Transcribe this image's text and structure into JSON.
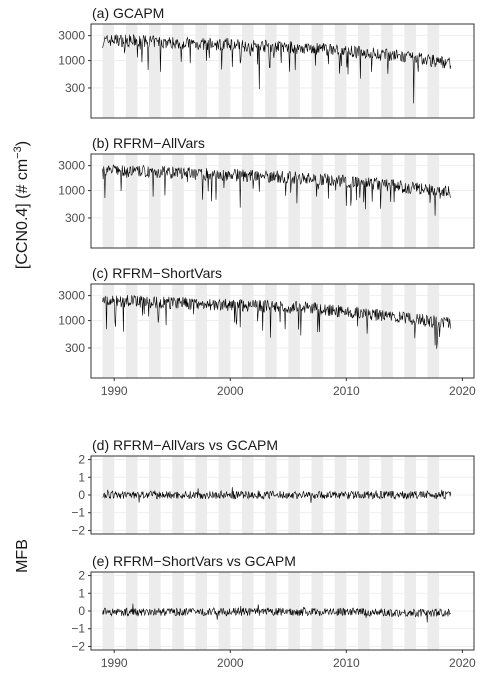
{
  "chart_data": [
    {
      "type": "line",
      "panel_title": "(a) GCAPM",
      "ylabel": "[CCN0.4] (# cm",
      "ylabel_exponent": "−3",
      "ylabel_close": ")",
      "y_scale": "log",
      "y_ticks": [
        300,
        1000,
        3000
      ],
      "y_tick_labels": [
        "300",
        "1000",
        "3000"
      ],
      "ylim": [
        80,
        5000
      ],
      "xlim": [
        1988.0,
        2021.0
      ],
      "grid": true,
      "background_bands": "alternate years shaded light grey (1989–2018)",
      "series": [
        {
          "x": [
            1989.0,
            1990.0,
            1991.0,
            1992.0,
            1993.0,
            1994.0,
            1995.0,
            1996.0,
            1997.0,
            1998.0,
            1999.0,
            2000.0,
            2001.0,
            2002.0,
            2003.0,
            2004.0,
            2005.0,
            2006.0,
            2007.0,
            2008.0,
            2009.0,
            2010.0,
            2011.0,
            2012.0,
            2013.0,
            2014.0,
            2015.0,
            2016.0,
            2017.0,
            2018.0,
            2019.0
          ],
          "y": [
            2300,
            2500,
            2400,
            2350,
            2300,
            2250,
            2200,
            2150,
            2100,
            2050,
            2000,
            2050,
            1950,
            1900,
            1900,
            1850,
            1800,
            1750,
            1700,
            1650,
            1600,
            1500,
            1450,
            1400,
            1300,
            1250,
            1150,
            1100,
            1050,
            950,
            900
          ]
        }
      ]
    },
    {
      "type": "line",
      "panel_title": "(b) RFRM−AllVars",
      "y_scale": "log",
      "y_ticks": [
        300,
        1000,
        3000
      ],
      "y_tick_labels": [
        "300",
        "1000",
        "3000"
      ],
      "ylim": [
        80,
        5000
      ],
      "xlim": [
        1988.0,
        2021.0
      ],
      "grid": true,
      "series": [
        {
          "x": [
            1989.0,
            1990.0,
            1991.0,
            1992.0,
            1993.0,
            1994.0,
            1995.0,
            1996.0,
            1997.0,
            1998.0,
            1999.0,
            2000.0,
            2001.0,
            2002.0,
            2003.0,
            2004.0,
            2005.0,
            2006.0,
            2007.0,
            2008.0,
            2009.0,
            2010.0,
            2011.0,
            2012.0,
            2013.0,
            2014.0,
            2015.0,
            2016.0,
            2017.0,
            2018.0,
            2019.0
          ],
          "y": [
            2400,
            2450,
            2350,
            2300,
            2300,
            2250,
            2200,
            2150,
            2100,
            2050,
            2000,
            2000,
            1950,
            1900,
            1900,
            1850,
            1800,
            1750,
            1700,
            1650,
            1600,
            1500,
            1450,
            1400,
            1300,
            1250,
            1150,
            1100,
            1050,
            1000,
            950
          ]
        }
      ]
    },
    {
      "type": "line",
      "panel_title": "(c) RFRM−ShortVars",
      "y_scale": "log",
      "y_ticks": [
        300,
        1000,
        3000
      ],
      "y_tick_labels": [
        "300",
        "1000",
        "3000"
      ],
      "ylim": [
        80,
        5000
      ],
      "xlim": [
        1988.0,
        2021.0
      ],
      "x_ticks": [
        1990,
        2000,
        2010,
        2020
      ],
      "x_tick_labels": [
        "1990",
        "2000",
        "2010",
        "2020"
      ],
      "grid": true,
      "series": [
        {
          "x": [
            1989.0,
            1990.0,
            1991.0,
            1992.0,
            1993.0,
            1994.0,
            1995.0,
            1996.0,
            1997.0,
            1998.0,
            1999.0,
            2000.0,
            2001.0,
            2002.0,
            2003.0,
            2004.0,
            2005.0,
            2006.0,
            2007.0,
            2008.0,
            2009.0,
            2010.0,
            2011.0,
            2012.0,
            2013.0,
            2014.0,
            2015.0,
            2016.0,
            2017.0,
            2018.0,
            2019.0
          ],
          "y": [
            2350,
            2400,
            2350,
            2300,
            2250,
            2250,
            2200,
            2150,
            2100,
            2050,
            2000,
            2000,
            1950,
            1900,
            1900,
            1850,
            1800,
            1750,
            1700,
            1650,
            1550,
            1450,
            1400,
            1300,
            1250,
            1200,
            1100,
            1050,
            1000,
            950,
            900
          ]
        }
      ]
    },
    {
      "type": "line",
      "panel_title": "(d) RFRM−AllVars vs GCAPM",
      "ylabel": "MFB",
      "y_scale": "linear",
      "y_ticks": [
        -2,
        -1,
        0,
        1,
        2
      ],
      "y_tick_labels": [
        "−2",
        "−1",
        "0",
        "1",
        "2"
      ],
      "ylim": [
        -2.2,
        2.2
      ],
      "xlim": [
        1988.0,
        2021.0
      ],
      "grid": true,
      "series": [
        {
          "x": [
            1989.0,
            1995.0,
            2000.0,
            2005.0,
            2010.0,
            2015.0,
            2019.0
          ],
          "y": [
            0.0,
            0.0,
            0.0,
            0.0,
            0.0,
            0.0,
            0.0
          ]
        }
      ]
    },
    {
      "type": "line",
      "panel_title": "(e) RFRM−ShortVars vs GCAPM",
      "y_scale": "linear",
      "y_ticks": [
        -2,
        -1,
        0,
        1,
        2
      ],
      "y_tick_labels": [
        "−2",
        "−1",
        "0",
        "1",
        "2"
      ],
      "ylim": [
        -2.2,
        2.2
      ],
      "xlim": [
        1988.0,
        2021.0
      ],
      "x_ticks": [
        1990,
        2000,
        2010,
        2020
      ],
      "x_tick_labels": [
        "1990",
        "2000",
        "2010",
        "2020"
      ],
      "grid": true,
      "series": [
        {
          "x": [
            1989.0,
            1995.0,
            2000.0,
            2005.0,
            2010.0,
            2015.0,
            2019.0
          ],
          "y": [
            -0.05,
            -0.05,
            -0.05,
            -0.05,
            -0.05,
            -0.1,
            -0.1
          ]
        }
      ]
    }
  ],
  "colors": {
    "line": "#000000",
    "band": "#ececec",
    "grid": "#ebebeb",
    "frame": "#333333",
    "tick_text": "#4d4d4d"
  }
}
